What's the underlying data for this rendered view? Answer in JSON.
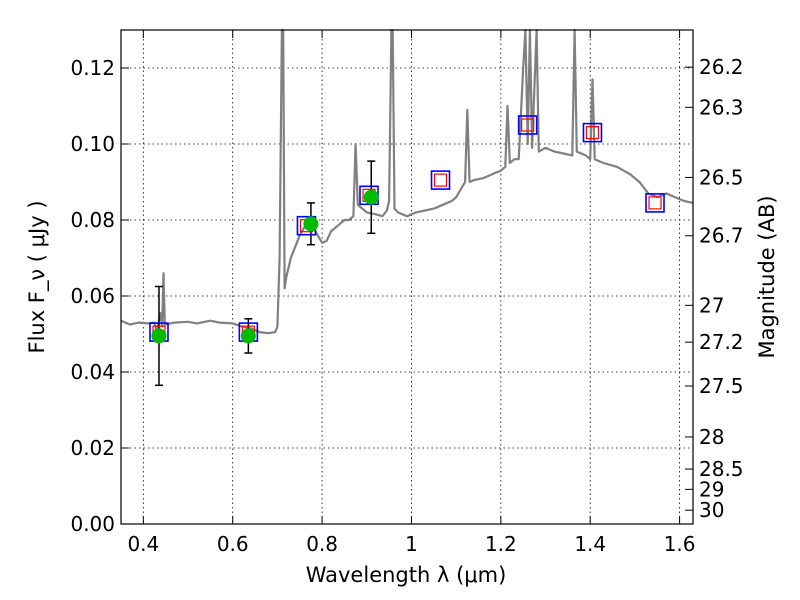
{
  "chart_data": {
    "type": "scatter",
    "xlabel": "Wavelength  λ (μm)",
    "ylabel_left": "Flux  F_ν  ( μJy )",
    "ylabel_right": "Magnitude (AB)",
    "xlim": [
      0.35,
      1.63
    ],
    "ylim": [
      0.0,
      0.13
    ],
    "x_ticks": [
      {
        "value": 0.4,
        "label": "0.4"
      },
      {
        "value": 0.6,
        "label": "0.6"
      },
      {
        "value": 0.8,
        "label": "0.8"
      },
      {
        "value": 1.0,
        "label": "1"
      },
      {
        "value": 1.2,
        "label": "1.2"
      },
      {
        "value": 1.4,
        "label": "1.4"
      },
      {
        "value": 1.6,
        "label": "1.6"
      }
    ],
    "y_ticks": [
      {
        "value": 0.0,
        "label": "0.00"
      },
      {
        "value": 0.02,
        "label": "0.02"
      },
      {
        "value": 0.04,
        "label": "0.04"
      },
      {
        "value": 0.06,
        "label": "0.06"
      },
      {
        "value": 0.08,
        "label": "0.08"
      },
      {
        "value": 0.1,
        "label": "0.10"
      },
      {
        "value": 0.12,
        "label": "0.12"
      }
    ],
    "mag_ticks": [
      {
        "value": 26.2,
        "label": "26.2"
      },
      {
        "value": 26.3,
        "label": "26.3"
      },
      {
        "value": 26.5,
        "label": "26.5"
      },
      {
        "value": 26.7,
        "label": "26.7"
      },
      {
        "value": 27.0,
        "label": "27"
      },
      {
        "value": 27.2,
        "label": "27.2"
      },
      {
        "value": 27.5,
        "label": "27.5"
      },
      {
        "value": 28.0,
        "label": "28"
      },
      {
        "value": 28.5,
        "label": "28.5"
      },
      {
        "value": 29.0,
        "label": "29"
      },
      {
        "value": 30.0,
        "label": "30"
      }
    ],
    "grid": true,
    "colors": {
      "spectrum": "#808080",
      "model_box": "#0000ff",
      "model_inner": "#ff0000",
      "observed": "#00bb00",
      "errorbar": "#000000"
    },
    "model_photometry": [
      {
        "x": 0.435,
        "y": 0.0505
      },
      {
        "x": 0.635,
        "y": 0.0505
      },
      {
        "x": 0.765,
        "y": 0.0785
      },
      {
        "x": 0.905,
        "y": 0.0865
      },
      {
        "x": 1.065,
        "y": 0.0905
      },
      {
        "x": 1.26,
        "y": 0.105
      },
      {
        "x": 1.405,
        "y": 0.103
      },
      {
        "x": 1.545,
        "y": 0.0845
      }
    ],
    "observed_photometry": [
      {
        "x": 0.435,
        "y": 0.0495,
        "err": 0.013
      },
      {
        "x": 0.635,
        "y": 0.0495,
        "err": 0.0045
      },
      {
        "x": 0.775,
        "y": 0.079,
        "err": 0.0055
      },
      {
        "x": 0.91,
        "y": 0.086,
        "err": 0.0095
      }
    ],
    "spectrum": [
      [
        0.35,
        0.0535
      ],
      [
        0.37,
        0.0525
      ],
      [
        0.39,
        0.053
      ],
      [
        0.41,
        0.0528
      ],
      [
        0.425,
        0.053
      ],
      [
        0.43,
        0.0505
      ],
      [
        0.438,
        0.0555
      ],
      [
        0.442,
        0.052
      ],
      [
        0.445,
        0.066
      ],
      [
        0.448,
        0.0525
      ],
      [
        0.47,
        0.053
      ],
      [
        0.5,
        0.0532
      ],
      [
        0.52,
        0.0528
      ],
      [
        0.55,
        0.0535
      ],
      [
        0.57,
        0.053
      ],
      [
        0.6,
        0.0528
      ],
      [
        0.62,
        0.052
      ],
      [
        0.64,
        0.0515
      ],
      [
        0.66,
        0.0505
      ],
      [
        0.68,
        0.0502
      ],
      [
        0.695,
        0.0505
      ],
      [
        0.7,
        0.052
      ],
      [
        0.705,
        0.07
      ],
      [
        0.71,
        0.13
      ],
      [
        0.713,
        0.13
      ],
      [
        0.716,
        0.062
      ],
      [
        0.72,
        0.065
      ],
      [
        0.73,
        0.07
      ],
      [
        0.74,
        0.073
      ],
      [
        0.75,
        0.076
      ],
      [
        0.76,
        0.078
      ],
      [
        0.77,
        0.08
      ],
      [
        0.78,
        0.078
      ],
      [
        0.79,
        0.076
      ],
      [
        0.8,
        0.074
      ],
      [
        0.81,
        0.0745
      ],
      [
        0.82,
        0.077
      ],
      [
        0.83,
        0.078
      ],
      [
        0.84,
        0.079
      ],
      [
        0.85,
        0.08
      ],
      [
        0.86,
        0.08
      ],
      [
        0.87,
        0.081
      ],
      [
        0.875,
        0.1
      ],
      [
        0.88,
        0.084
      ],
      [
        0.9,
        0.082
      ],
      [
        0.92,
        0.0815
      ],
      [
        0.935,
        0.081
      ],
      [
        0.945,
        0.0825
      ],
      [
        0.95,
        0.085
      ],
      [
        0.955,
        0.13
      ],
      [
        0.958,
        0.13
      ],
      [
        0.962,
        0.083
      ],
      [
        0.97,
        0.082
      ],
      [
        0.99,
        0.081
      ],
      [
        1.01,
        0.082
      ],
      [
        1.03,
        0.0825
      ],
      [
        1.05,
        0.083
      ],
      [
        1.07,
        0.084
      ],
      [
        1.09,
        0.085
      ],
      [
        1.1,
        0.086
      ],
      [
        1.11,
        0.088
      ],
      [
        1.12,
        0.09
      ],
      [
        1.125,
        0.109
      ],
      [
        1.13,
        0.09
      ],
      [
        1.14,
        0.0905
      ],
      [
        1.16,
        0.091
      ],
      [
        1.18,
        0.092
      ],
      [
        1.2,
        0.093
      ],
      [
        1.21,
        0.094
      ],
      [
        1.215,
        0.11
      ],
      [
        1.22,
        0.095
      ],
      [
        1.23,
        0.096
      ],
      [
        1.24,
        0.096
      ],
      [
        1.25,
        0.12
      ],
      [
        1.255,
        0.13
      ],
      [
        1.26,
        0.1
      ],
      [
        1.265,
        0.13
      ],
      [
        1.27,
        0.099
      ],
      [
        1.28,
        0.13
      ],
      [
        1.285,
        0.098
      ],
      [
        1.3,
        0.099
      ],
      [
        1.32,
        0.098
      ],
      [
        1.34,
        0.0975
      ],
      [
        1.36,
        0.097
      ],
      [
        1.365,
        0.13
      ],
      [
        1.37,
        0.098
      ],
      [
        1.39,
        0.097
      ],
      [
        1.4,
        0.096
      ],
      [
        1.405,
        0.117
      ],
      [
        1.41,
        0.096
      ],
      [
        1.43,
        0.095
      ],
      [
        1.46,
        0.094
      ],
      [
        1.49,
        0.092
      ],
      [
        1.51,
        0.09
      ],
      [
        1.53,
        0.087
      ],
      [
        1.55,
        0.086
      ],
      [
        1.57,
        0.087
      ],
      [
        1.59,
        0.086
      ],
      [
        1.61,
        0.085
      ],
      [
        1.63,
        0.0845
      ]
    ]
  }
}
